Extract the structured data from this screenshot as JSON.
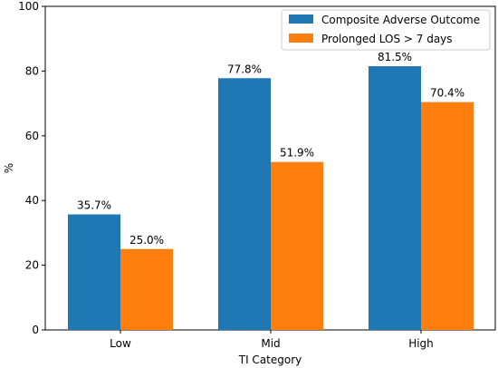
{
  "chart_data": {
    "type": "bar",
    "title": "",
    "xlabel": "TI Category",
    "ylabel": "%",
    "categories": [
      "Low",
      "Mid",
      "High"
    ],
    "ylim": [
      0,
      100
    ],
    "yticks": [
      0,
      20,
      40,
      60,
      80,
      100
    ],
    "grid": false,
    "legend_position": "top-right",
    "series": [
      {
        "name": "Composite Adverse Outcome",
        "color": "#1f77b4",
        "values": [
          35.7,
          77.8,
          81.5
        ],
        "labels": [
          "35.7%",
          "77.8%",
          "81.5%"
        ]
      },
      {
        "name": "Prolonged LOS > 7 days",
        "color": "#ff7f0e",
        "values": [
          25.0,
          51.9,
          70.4
        ],
        "labels": [
          "25.0%",
          "51.9%",
          "70.4%"
        ]
      }
    ]
  }
}
